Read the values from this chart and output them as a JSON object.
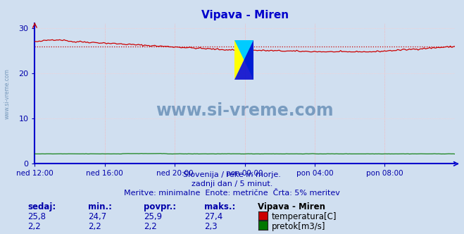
{
  "title": "Vipava - Miren",
  "title_color": "#0000cc",
  "bg_color": "#d0dff0",
  "plot_bg_color": "#d0dff0",
  "grid_color": "#ffaaaa",
  "grid_color_h": "#ffcccc",
  "xlabel_ticks": [
    "ned 12:00",
    "ned 16:00",
    "ned 20:00",
    "pon 00:00",
    "pon 04:00",
    "pon 08:00"
  ],
  "n_points": 288,
  "temp_min": 24.7,
  "temp_max": 27.4,
  "temp_avg": 25.9,
  "temp_now": 25.8,
  "flow_min": 2.2,
  "flow_max": 2.3,
  "flow_avg": 2.2,
  "flow_now": 2.2,
  "y_ticks": [
    0,
    10,
    20,
    30
  ],
  "ylim_min": 0,
  "ylim_max": 31,
  "temp_line_color": "#cc0000",
  "temp_avg_line_color": "#cc0000",
  "flow_line_color": "#007700",
  "axis_color": "#0000cc",
  "watermark": "www.si-vreme.com",
  "watermark_color": "#336699",
  "subtitle1": "Slovenija / reke in morje.",
  "subtitle2": "zadnji dan / 5 minut.",
  "subtitle3": "Meritve: minimalne  Enote: metrične  Črta: 5% meritev",
  "label_sedaj": "sedaj:",
  "label_min": "min.:",
  "label_povpr": "povpr.:",
  "label_maks": "maks.:",
  "label_station": "Vipava - Miren",
  "label_temp": "temperatura[C]",
  "label_flow": "pretok[m3/s]",
  "text_color": "#0000aa",
  "axis_label_color": "#0000aa",
  "ylabel_text": "www.si-vreme.com",
  "ylabel_color": "#7799bb"
}
